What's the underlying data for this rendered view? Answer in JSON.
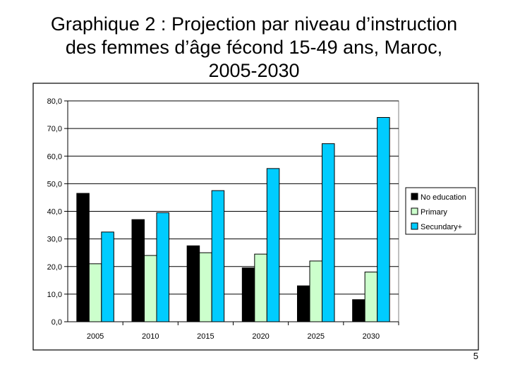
{
  "slide": {
    "title_lines": [
      "Graphique 2 : Projection par niveau d’instruction",
      "des femmes d’âge fécond 15-49 ans, Maroc,",
      "2005-2030"
    ],
    "page_number": "5"
  },
  "chart_data": {
    "type": "bar",
    "title": "",
    "xlabel": "",
    "ylabel": "",
    "categories": [
      "2005",
      "2010",
      "2015",
      "2020",
      "2025",
      "2030"
    ],
    "series": [
      {
        "name": "No education",
        "values": [
          46.5,
          37.0,
          27.5,
          19.5,
          13.0,
          8.0
        ],
        "color": "#000000"
      },
      {
        "name": "Primary",
        "values": [
          21.0,
          24.0,
          25.0,
          24.5,
          22.0,
          18.0
        ],
        "color": "#ccffcc"
      },
      {
        "name": "Secundary+",
        "values": [
          32.5,
          39.5,
          47.5,
          55.5,
          64.5,
          74.0
        ],
        "color": "#00ccff"
      }
    ],
    "ylim": [
      0,
      80
    ],
    "yticks": [
      "0,0",
      "10,0",
      "20,0",
      "30,0",
      "40,0",
      "50,0",
      "60,0",
      "70,0",
      "80,0"
    ],
    "grid": true,
    "legend_position": "right"
  }
}
